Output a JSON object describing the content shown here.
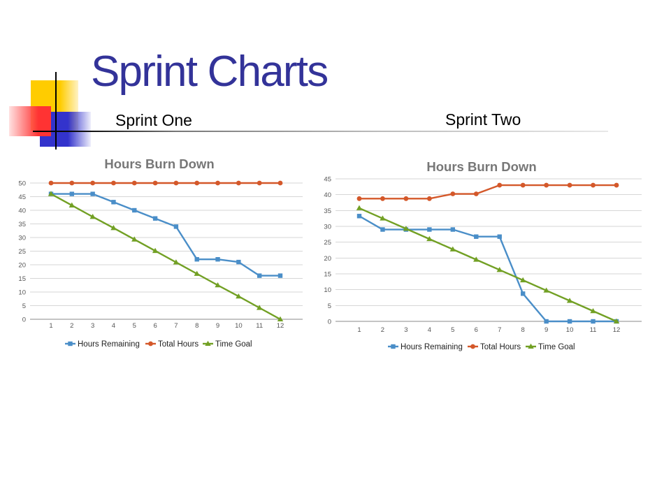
{
  "slide": {
    "title": "Sprint Charts",
    "panels": [
      {
        "label": "Sprint One"
      },
      {
        "label": "Sprint Two"
      }
    ]
  },
  "colors": {
    "title": "#333399",
    "yellow_square": "#ffcc00",
    "blue_square": "#3333cc",
    "red_square": "#ff3333",
    "chart_title": "#777777",
    "hours_remaining": "#4a8ec8",
    "total_hours": "#d4582a",
    "time_goal": "#72a024"
  },
  "chart_data": [
    {
      "type": "line",
      "title": "Hours Burn Down",
      "x": [
        1,
        2,
        3,
        4,
        5,
        6,
        7,
        8,
        9,
        10,
        11,
        12
      ],
      "ylim": [
        0,
        50
      ],
      "yticks": [
        0,
        5,
        10,
        15,
        20,
        25,
        30,
        35,
        40,
        45,
        50
      ],
      "grid": true,
      "legend": "bottom",
      "series": [
        {
          "name": "Hours Remaining",
          "marker": "square",
          "color": "#4a8ec8",
          "values": [
            46,
            46,
            46,
            43,
            40,
            37,
            34,
            22,
            22,
            21,
            16,
            16
          ]
        },
        {
          "name": "Total Hours",
          "marker": "circle",
          "color": "#d4582a",
          "values": [
            50,
            50,
            50,
            50,
            50,
            50,
            50,
            50,
            50,
            50,
            50,
            50
          ]
        },
        {
          "name": "Time Goal",
          "marker": "triangle",
          "color": "#72a024",
          "values": [
            46,
            41.8,
            37.6,
            33.5,
            29.3,
            25.1,
            20.9,
            16.7,
            12.5,
            8.4,
            4.2,
            0
          ]
        }
      ]
    },
    {
      "type": "line",
      "title": "Hours Burn Down",
      "x": [
        1,
        2,
        3,
        4,
        5,
        6,
        7,
        8,
        9,
        10,
        11,
        12
      ],
      "ylim": [
        0,
        45
      ],
      "yticks": [
        0,
        5,
        10,
        15,
        20,
        25,
        30,
        35,
        40,
        45
      ],
      "grid": true,
      "legend": "bottom",
      "series": [
        {
          "name": "Hours Remaining",
          "marker": "square",
          "color": "#4a8ec8",
          "values": [
            33.25,
            29,
            29,
            29,
            29,
            26.75,
            26.75,
            8.75,
            0,
            0,
            0,
            0
          ]
        },
        {
          "name": "Total Hours",
          "marker": "circle",
          "color": "#d4582a",
          "values": [
            38.75,
            38.75,
            38.75,
            38.75,
            40.25,
            40.25,
            43,
            43,
            43,
            43,
            43,
            43
          ]
        },
        {
          "name": "Time Goal",
          "marker": "triangle",
          "color": "#72a024",
          "values": [
            35.75,
            32.5,
            29.25,
            26,
            22.75,
            19.5,
            16.25,
            13,
            9.75,
            6.5,
            3.25,
            0
          ]
        }
      ]
    }
  ]
}
